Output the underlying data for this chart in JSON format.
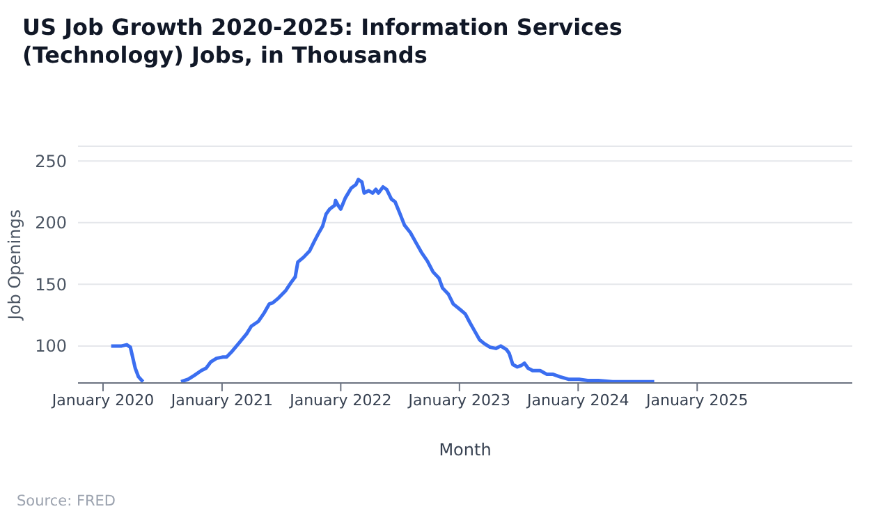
{
  "chart_data": {
    "type": "line",
    "title": "US Job Growth 2020-2025: Information Services (Technology) Jobs, in Thousands",
    "xlabel": "Month",
    "ylabel": "Job Openings",
    "annotations": [
      "Source: FRED"
    ],
    "x": [
      "2020-01-26",
      "2020-02-27",
      "2020-03-14",
      "2020-03-25",
      "2020-04-09",
      "2020-04-19",
      "2020-05-03",
      "2020-07-01",
      "2020-08-28",
      "2020-09-19",
      "2020-10-07",
      "2020-10-29",
      "2020-11-13",
      "2020-11-27",
      "2020-12-15",
      "2021-01-04",
      "2021-01-15",
      "2021-02-02",
      "2021-02-24",
      "2021-03-18",
      "2021-04-01",
      "2021-04-23",
      "2021-05-11",
      "2021-05-26",
      "2021-06-06",
      "2021-06-24",
      "2021-07-16",
      "2021-07-31",
      "2021-08-14",
      "2021-08-22",
      "2021-09-09",
      "2021-09-27",
      "2021-10-12",
      "2021-10-26",
      "2021-11-06",
      "2021-11-17",
      "2021-11-28",
      "2021-12-13",
      "2021-12-16",
      "2021-12-24",
      "2022-01-01",
      "2022-01-15",
      "2022-02-02",
      "2022-02-17",
      "2022-02-24",
      "2022-03-07",
      "2022-03-14",
      "2022-03-28",
      "2022-04-09",
      "2022-04-19",
      "2022-04-27",
      "2022-05-11",
      "2022-05-22",
      "2022-06-06",
      "2022-06-17",
      "2022-07-01",
      "2022-07-16",
      "2022-08-03",
      "2022-08-22",
      "2022-09-06",
      "2022-09-24",
      "2022-10-12",
      "2022-10-30",
      "2022-11-10",
      "2022-11-28",
      "2022-12-13",
      "2023-01-01",
      "2023-01-19",
      "2023-02-02",
      "2023-02-17",
      "2023-03-04",
      "2023-03-18",
      "2023-04-05",
      "2023-04-23",
      "2023-05-08",
      "2023-05-26",
      "2023-06-03",
      "2023-06-14",
      "2023-06-28",
      "2023-07-09",
      "2023-07-20",
      "2023-07-31",
      "2023-08-14",
      "2023-09-06",
      "2023-09-27",
      "2023-10-16",
      "2023-11-06",
      "2023-12-02",
      "2024-01-04",
      "2024-01-30",
      "2024-03-03",
      "2024-04-16",
      "2024-05-30",
      "2024-07-13",
      "2024-08-22"
    ],
    "series": [
      {
        "color": "#3b6ef0",
        "values": [
          100,
          100,
          101,
          99,
          82,
          75,
          71,
          null,
          71,
          73,
          76,
          80,
          82,
          87,
          90,
          91,
          91,
          96,
          103,
          110,
          116,
          120,
          127,
          134,
          135,
          139,
          145,
          151,
          156,
          168,
          172,
          177,
          185,
          192,
          197,
          207,
          211,
          214,
          218,
          214,
          211,
          220,
          228,
          231,
          235,
          233,
          224,
          226,
          224,
          227,
          224,
          229,
          227,
          219,
          217,
          208,
          198,
          192,
          183,
          176,
          169,
          160,
          155,
          147,
          142,
          134,
          130,
          126,
          119,
          112,
          105,
          102,
          99,
          98,
          100,
          97,
          94,
          85,
          83,
          84,
          86,
          82,
          80,
          80,
          77,
          77,
          75,
          73,
          73,
          72,
          72,
          71,
          71,
          71,
          71
        ]
      }
    ],
    "xlim": [
      "2019-10-16",
      "2026-04-23"
    ],
    "xticks": [
      {
        "value": "2020-01-01",
        "label": "January 2020"
      },
      {
        "value": "2021-01-01",
        "label": "January 2021"
      },
      {
        "value": "2022-01-01",
        "label": "January 2022"
      },
      {
        "value": "2023-01-01",
        "label": "January 2023"
      },
      {
        "value": "2024-01-01",
        "label": "January 2024"
      },
      {
        "value": "2025-01-01",
        "label": "January 2025"
      }
    ],
    "ylim": [
      70,
      262
    ],
    "yticks": [
      100,
      150,
      200,
      250
    ],
    "grid": "y"
  }
}
